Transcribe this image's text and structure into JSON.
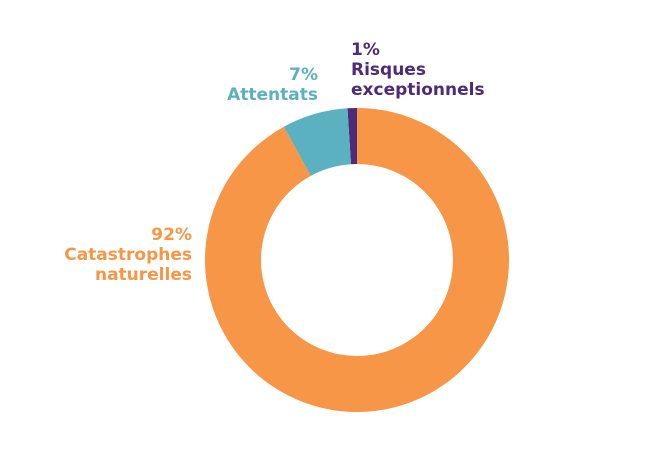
{
  "chart_data": {
    "type": "pie",
    "variant": "donut",
    "title": "",
    "legend": "none",
    "slices": [
      {
        "label_lines": [
          "1%",
          "Risques",
          "exceptionnels"
        ],
        "value": 1,
        "color": "#4f2a78"
      },
      {
        "label_lines": [
          "7%",
          "Attentats"
        ],
        "value": 7,
        "color": "#5bb1bf"
      },
      {
        "label_lines": [
          "92%",
          "Catastrophes",
          "naturelles"
        ],
        "value": 92,
        "color": "#f79646"
      }
    ]
  }
}
